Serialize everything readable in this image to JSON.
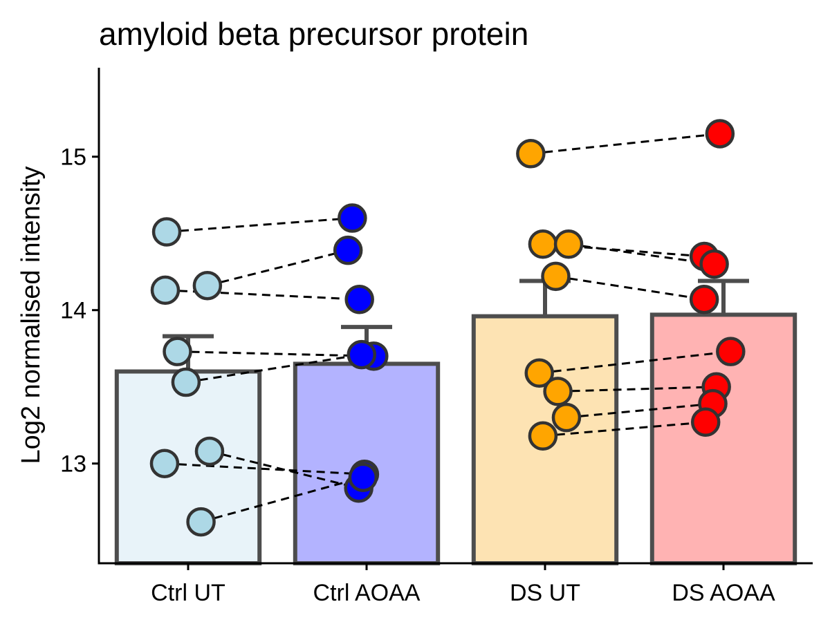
{
  "chart_data": {
    "type": "bar",
    "title": "amyloid beta precursor protein",
    "xlabel": "",
    "ylabel": "Log2 normalised intensity",
    "ylim": [
      12.35,
      15.58
    ],
    "yticks": [
      13,
      14,
      15
    ],
    "grid": false,
    "legend": "none",
    "categories": [
      "Ctrl UT",
      "Ctrl AOAA",
      "DS UT",
      "DS AOAA"
    ],
    "bars": [
      {
        "category": "Ctrl UT",
        "mean": 13.6,
        "error_upper": 13.83,
        "fill": "#e8f3f9",
        "point_color": "#add8e6",
        "points": [
          {
            "y": 14.51,
            "jitter": -0.3
          },
          {
            "y": 14.13,
            "jitter": -0.32
          },
          {
            "y": 14.16,
            "jitter": 0.27
          },
          {
            "y": 13.73,
            "jitter": -0.15
          },
          {
            "y": 13.53,
            "jitter": -0.03
          },
          {
            "y": 13.0,
            "jitter": -0.33
          },
          {
            "y": 13.08,
            "jitter": 0.3
          },
          {
            "y": 12.62,
            "jitter": 0.18
          }
        ]
      },
      {
        "category": "Ctrl AOAA",
        "mean": 13.65,
        "error_upper": 13.89,
        "fill": "#b3b3ff",
        "point_color": "#0000ff",
        "points": [
          {
            "y": 14.6,
            "jitter": -0.2
          },
          {
            "y": 14.39,
            "jitter": -0.26
          },
          {
            "y": 14.07,
            "jitter": -0.1
          },
          {
            "y": 13.7,
            "jitter": 0.1
          },
          {
            "y": 13.71,
            "jitter": -0.07
          },
          {
            "y": 12.84,
            "jitter": -0.11
          },
          {
            "y": 12.93,
            "jitter": -0.03
          },
          {
            "y": 12.91,
            "jitter": -0.05
          }
        ]
      },
      {
        "category": "DS UT",
        "mean": 13.96,
        "error_upper": 14.19,
        "fill": "#fde3b3",
        "point_color": "#ffa500",
        "points": [
          {
            "y": 15.02,
            "jitter": -0.2
          },
          {
            "y": 14.43,
            "jitter": -0.03
          },
          {
            "y": 14.43,
            "jitter": 0.33
          },
          {
            "y": 14.22,
            "jitter": 0.15
          },
          {
            "y": 13.59,
            "jitter": -0.08
          },
          {
            "y": 13.47,
            "jitter": 0.18
          },
          {
            "y": 13.3,
            "jitter": 0.3
          },
          {
            "y": 13.18,
            "jitter": -0.03
          }
        ]
      },
      {
        "category": "DS AOAA",
        "mean": 13.97,
        "error_upper": 14.19,
        "fill": "#ffb3b3",
        "point_color": "#ff0000",
        "points": [
          {
            "y": 15.15,
            "jitter": -0.05
          },
          {
            "y": 14.35,
            "jitter": -0.27
          },
          {
            "y": 14.3,
            "jitter": -0.13
          },
          {
            "y": 14.07,
            "jitter": -0.27
          },
          {
            "y": 13.73,
            "jitter": 0.1
          },
          {
            "y": 13.5,
            "jitter": -0.1
          },
          {
            "y": 13.39,
            "jitter": -0.15
          },
          {
            "y": 13.27,
            "jitter": -0.25
          }
        ]
      }
    ],
    "pairs": [
      {
        "from": [
          0,
          0
        ],
        "to": [
          1,
          0
        ]
      },
      {
        "from": [
          0,
          2
        ],
        "to": [
          1,
          1
        ]
      },
      {
        "from": [
          0,
          1
        ],
        "to": [
          1,
          2
        ]
      },
      {
        "from": [
          0,
          3
        ],
        "to": [
          1,
          3
        ]
      },
      {
        "from": [
          0,
          4
        ],
        "to": [
          1,
          4
        ]
      },
      {
        "from": [
          0,
          6
        ],
        "to": [
          1,
          5
        ]
      },
      {
        "from": [
          0,
          5
        ],
        "to": [
          1,
          6
        ]
      },
      {
        "from": [
          0,
          7
        ],
        "to": [
          1,
          7
        ]
      },
      {
        "from": [
          2,
          0
        ],
        "to": [
          3,
          0
        ]
      },
      {
        "from": [
          2,
          1
        ],
        "to": [
          3,
          1
        ]
      },
      {
        "from": [
          2,
          2
        ],
        "to": [
          3,
          2
        ]
      },
      {
        "from": [
          2,
          3
        ],
        "to": [
          3,
          3
        ]
      },
      {
        "from": [
          2,
          4
        ],
        "to": [
          3,
          4
        ]
      },
      {
        "from": [
          2,
          5
        ],
        "to": [
          3,
          5
        ]
      },
      {
        "from": [
          2,
          6
        ],
        "to": [
          3,
          6
        ]
      },
      {
        "from": [
          2,
          7
        ],
        "to": [
          3,
          7
        ]
      }
    ],
    "colors": {
      "bar_outline": "#4d4d4d",
      "point_outline": "#333333",
      "pair_line": "#000000",
      "axis": "#000000"
    }
  }
}
